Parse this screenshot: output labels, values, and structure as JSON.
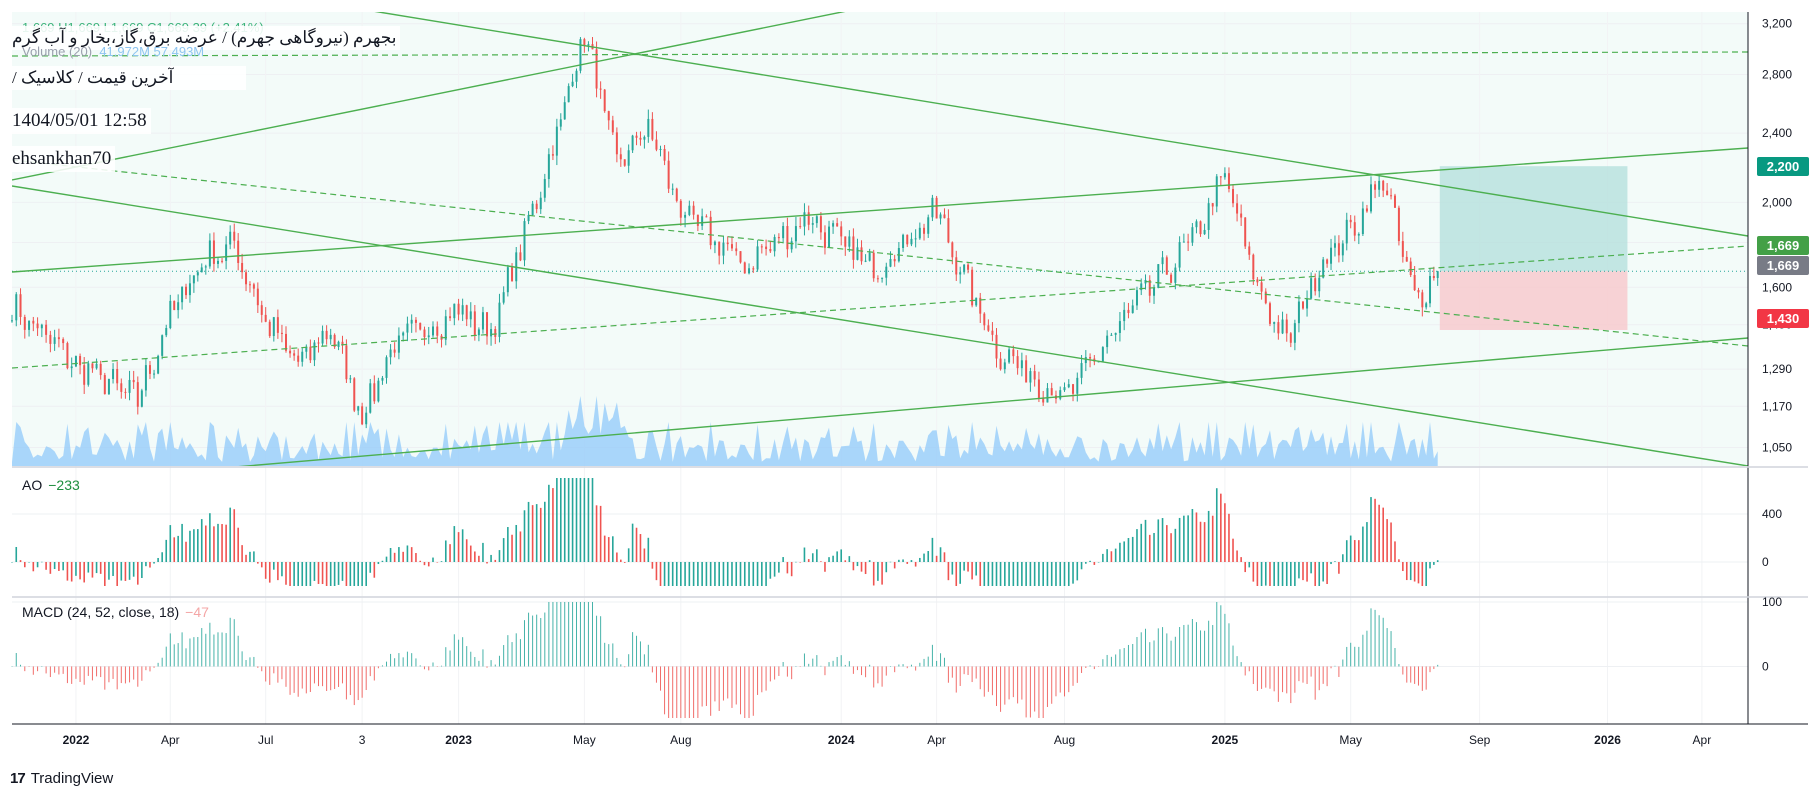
{
  "header": {
    "symbol_name": "بجهرم (نیروگاهی جهرم) / عرضه برق،گاز،بخار و آب گرم",
    "price_type": "آخرین قیمت / کلاسیک /",
    "datetime": "1404/05/01 12:58",
    "author": "ehsankhan70",
    "ohlc_fragment": "1,669  H1,669  L1,669  C1,669  39 (+2.41%)",
    "volume_label": "Volume (20)",
    "volume_values": "41.972M  57.493M"
  },
  "brand": {
    "logo_text": "TradingView",
    "mark": "17"
  },
  "colors": {
    "up": "#26a69a",
    "down": "#ef5350",
    "trend_line": "#4caf50",
    "volume": "#90caf9",
    "macd_pos": "#26a69a",
    "macd_neg": "#ef5350",
    "target_zone": "#b2dfdb",
    "stop_zone": "#f8c8cc",
    "current_price_tag": "#787b86",
    "target_tag": "#089981",
    "stop_tag": "#f23645",
    "line_tag": "#43a047"
  },
  "price_axis": {
    "ticks": [
      "3,200",
      "2,800",
      "2,400",
      "2,000",
      "1,800",
      "1,600",
      "1,450",
      "1,290",
      "1,170",
      "1,050"
    ]
  },
  "price_tags": {
    "target": "2,200",
    "trend_line": "1,669",
    "current": "1,669",
    "stop": "1,430"
  },
  "indicators": {
    "ao": {
      "label": "AO",
      "value": "−233",
      "ticks": [
        "400",
        "0"
      ]
    },
    "macd": {
      "label": "MACD (24, 52, close, 18)",
      "value": "−47",
      "ticks": [
        "100",
        "0"
      ]
    }
  },
  "time_axis": {
    "labels": [
      "2022",
      "Apr",
      "Jul",
      "3",
      "2023",
      "May",
      "Aug",
      "2024",
      "Apr",
      "Aug",
      "2025",
      "May",
      "Sep",
      "2026",
      "Apr"
    ]
  },
  "chart_data": {
    "type": "candlestick",
    "title": "بجهرم (نیروگاهی جهرم) / عرضه برق،گاز،بخار و آب گرم",
    "price_scale": "log",
    "ylim": [
      1000,
      3300
    ],
    "x_range": [
      "2021-11",
      "2026-05"
    ],
    "last_close": 1669,
    "price_path": [
      {
        "date": "2021-11",
        "close": 1520
      },
      {
        "date": "2022-01",
        "close": 1310
      },
      {
        "date": "2022-03",
        "close": 1190
      },
      {
        "date": "2022-04",
        "close": 1480
      },
      {
        "date": "2022-05",
        "close": 1720
      },
      {
        "date": "2022-06",
        "close": 1780
      },
      {
        "date": "2022-07",
        "close": 1470
      },
      {
        "date": "2022-08",
        "close": 1300
      },
      {
        "date": "2022-09",
        "close": 1440
      },
      {
        "date": "2022-10",
        "close": 1140
      },
      {
        "date": "2022-11",
        "close": 1380
      },
      {
        "date": "2023-01",
        "close": 1500
      },
      {
        "date": "2023-02",
        "close": 1420
      },
      {
        "date": "2023-03",
        "close": 1780
      },
      {
        "date": "2023-04",
        "close": 2300
      },
      {
        "date": "2023-05",
        "close": 3150
      },
      {
        "date": "2023-06",
        "close": 2200
      },
      {
        "date": "2023-07",
        "close": 2450
      },
      {
        "date": "2023-08",
        "close": 1950
      },
      {
        "date": "2023-10",
        "close": 1700
      },
      {
        "date": "2023-12",
        "close": 1920
      },
      {
        "date": "2024-02",
        "close": 1680
      },
      {
        "date": "2024-04",
        "close": 1950
      },
      {
        "date": "2024-05",
        "close": 1600
      },
      {
        "date": "2024-06",
        "close": 1350
      },
      {
        "date": "2024-08",
        "close": 1190
      },
      {
        "date": "2024-10",
        "close": 1500
      },
      {
        "date": "2024-12",
        "close": 1800
      },
      {
        "date": "2025-01",
        "close": 2150
      },
      {
        "date": "2025-02",
        "close": 1600
      },
      {
        "date": "2025-03",
        "close": 1380
      },
      {
        "date": "2025-04",
        "close": 1700
      },
      {
        "date": "2025-05",
        "close": 1850
      },
      {
        "date": "2025-06",
        "close": 2150
      },
      {
        "date": "2025-07",
        "close": 1540
      },
      {
        "date": "2025-07-23",
        "close": 1669
      }
    ],
    "position": {
      "type": "long",
      "entry": 1669,
      "target": 2200,
      "stop": 1430,
      "from": "2025-07",
      "to": "2026-01"
    },
    "indicators": {
      "ao": {
        "last": -233,
        "ylim": [
          -200,
          700
        ]
      },
      "macd": {
        "params": "24, 52, close, 18",
        "last": -47,
        "ylim": [
          -80,
          100
        ]
      }
    }
  }
}
